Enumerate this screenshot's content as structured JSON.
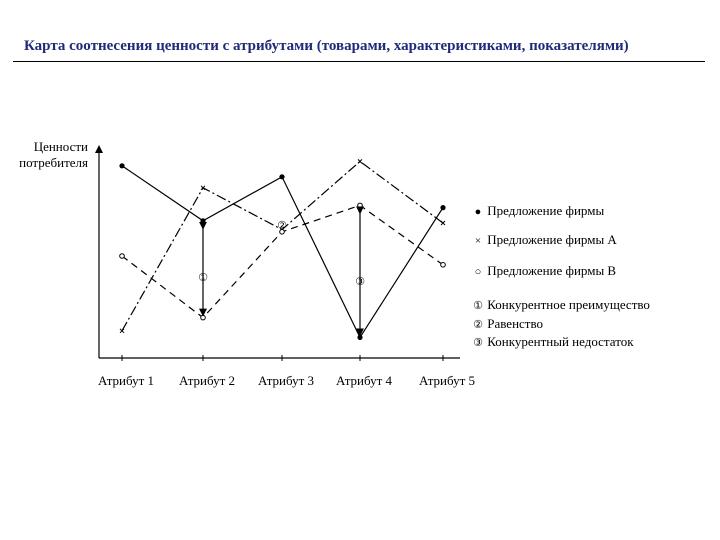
{
  "title": "Карта соотнесения ценности с атрибутами (товарами, характеристиками, показателями)",
  "chart_data": {
    "type": "line",
    "ylabel_lines": [
      "Ценности",
      "потребителя"
    ],
    "categories": [
      "Атрибут 1",
      "Атрибут 2",
      "Атрибут 3",
      "Атрибут 4",
      "Атрибут  5"
    ],
    "ylim": [
      0,
      10
    ],
    "series": [
      {
        "name": "Предложение фирмы",
        "marker": "dot",
        "dash": "",
        "values": [
          8.6,
          6.1,
          8.1,
          0.8,
          6.7
        ]
      },
      {
        "name": "Предложение фирмы A",
        "marker": "x",
        "dash": "10 3 2 3",
        "values": [
          1.1,
          7.6,
          5.7,
          8.8,
          6.0
        ]
      },
      {
        "name": "Предложение фирмы B",
        "marker": "circle",
        "dash": "7 5",
        "values": [
          4.5,
          1.7,
          5.6,
          6.8,
          4.1
        ]
      }
    ],
    "annotations": [
      {
        "symbol": "①",
        "label": "Конкурентное преимущество",
        "category_index": 1,
        "from": 6.1,
        "to": 1.7
      },
      {
        "symbol": "②",
        "label": "Равенство",
        "category_index": 2,
        "from": null,
        "to": null
      },
      {
        "symbol": "③",
        "label": "Конкурентный недостаток",
        "category_index": 3,
        "from": 6.8,
        "to": 0.8
      }
    ]
  }
}
